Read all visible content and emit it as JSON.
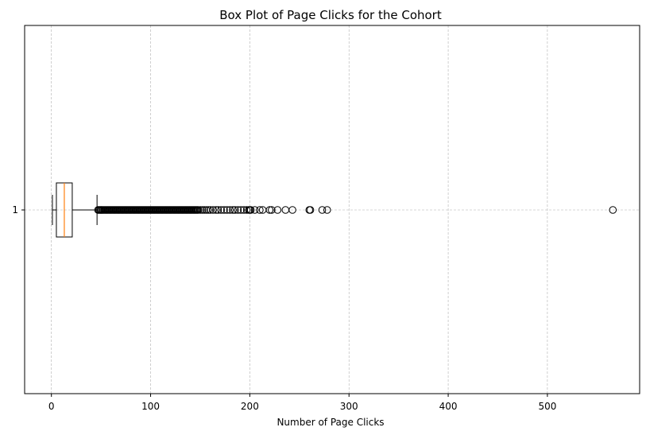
{
  "chart_data": {
    "type": "box",
    "orientation": "horizontal",
    "title": "Box Plot of Page Clicks for the Cohort",
    "xlabel": "Number of Page Clicks",
    "ylabel": "",
    "xlim": [
      -27,
      593
    ],
    "xticks": [
      0,
      100,
      200,
      300,
      400,
      500
    ],
    "yticks": [
      "1"
    ],
    "grid": true,
    "series": [
      {
        "category": "1",
        "whisker_low": 1,
        "q1": 5,
        "median": 13,
        "q3": 21,
        "whisker_high": 46,
        "outliers": [
          47,
          48,
          49,
          50,
          51,
          52,
          53,
          54,
          55,
          56,
          57,
          58,
          59,
          60,
          61,
          62,
          63,
          64,
          65,
          66,
          67,
          68,
          69,
          70,
          71,
          72,
          73,
          74,
          75,
          76,
          77,
          78,
          79,
          80,
          81,
          82,
          83,
          84,
          85,
          86,
          87,
          88,
          89,
          90,
          91,
          92,
          93,
          94,
          95,
          96,
          97,
          98,
          99,
          100,
          101,
          102,
          103,
          104,
          105,
          106,
          107,
          108,
          109,
          110,
          111,
          112,
          113,
          114,
          115,
          116,
          117,
          118,
          119,
          120,
          121,
          122,
          123,
          124,
          125,
          126,
          127,
          128,
          129,
          130,
          131,
          132,
          133,
          134,
          135,
          136,
          137,
          138,
          139,
          140,
          141,
          142,
          143,
          144,
          145,
          146,
          147,
          148,
          150,
          152,
          154,
          156,
          158,
          160,
          163,
          166,
          168,
          171,
          174,
          177,
          180,
          183,
          185,
          188,
          191,
          194,
          197,
          199,
          200,
          201,
          205,
          210,
          213,
          220,
          222,
          228,
          236,
          243,
          260,
          261,
          273,
          278,
          566
        ]
      }
    ],
    "colors": {
      "box": "#000000",
      "median": "#ff7f0e",
      "grid": "#b0b0b0"
    }
  }
}
